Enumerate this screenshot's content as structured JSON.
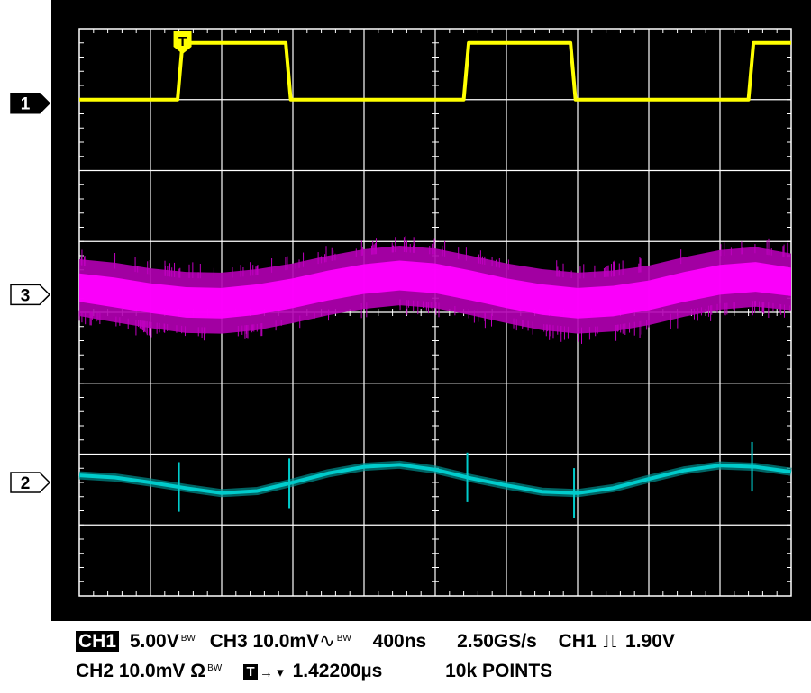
{
  "colors": {
    "ch1": "#ffff00",
    "ch2": "#00cccc",
    "ch3": "#ff00ff",
    "grid": "#ffffff",
    "screen": "#000000"
  },
  "chart_data": {
    "type": "line",
    "grid": true,
    "divisions": {
      "x": 10,
      "y": 8
    },
    "x_unit": "div",
    "y_unit": "div",
    "trigger_marker": {
      "label": "T",
      "x_div": 1.45
    },
    "series": [
      {
        "name": "1",
        "marker_y_div": 6.95,
        "x": [
          0,
          1.38,
          1.45,
          2.9,
          2.97,
          5.4,
          5.47,
          6.9,
          6.97,
          9.4,
          9.47,
          10
        ],
        "y": [
          7.0,
          7.0,
          7.8,
          7.8,
          7.0,
          7.0,
          7.8,
          7.8,
          7.0,
          7.0,
          7.8,
          7.8
        ]
      },
      {
        "name": "3",
        "marker_y_div": 4.25,
        "shape": "band",
        "x": [
          0,
          0.5,
          1,
          1.5,
          2,
          2.5,
          3,
          3.5,
          4,
          4.5,
          5,
          5.5,
          6,
          6.5,
          7,
          7.5,
          8,
          8.5,
          9,
          9.5,
          10
        ],
        "y_center": [
          4.35,
          4.28,
          4.2,
          4.14,
          4.13,
          4.18,
          4.27,
          4.38,
          4.47,
          4.52,
          4.48,
          4.38,
          4.27,
          4.18,
          4.13,
          4.16,
          4.24,
          4.36,
          4.46,
          4.5,
          4.43
        ],
        "half_width": [
          0.4,
          0.42,
          0.42,
          0.43,
          0.43,
          0.43,
          0.42,
          0.42,
          0.42,
          0.42,
          0.42,
          0.42,
          0.42,
          0.43,
          0.43,
          0.43,
          0.42,
          0.42,
          0.42,
          0.42,
          0.4
        ]
      },
      {
        "name": "2",
        "marker_y_div": 1.6,
        "x": [
          0,
          0.5,
          1,
          1.5,
          2,
          2.5,
          3,
          3.5,
          4,
          4.5,
          5,
          5.5,
          6,
          6.5,
          7,
          7.5,
          8,
          8.5,
          9,
          9.5,
          10
        ],
        "y": [
          1.7,
          1.67,
          1.6,
          1.52,
          1.45,
          1.48,
          1.6,
          1.73,
          1.82,
          1.85,
          1.78,
          1.66,
          1.56,
          1.47,
          1.45,
          1.52,
          1.65,
          1.77,
          1.84,
          1.82,
          1.75
        ],
        "spikes_x": [
          1.4,
          2.95,
          5.45,
          6.95,
          9.45
        ],
        "spike_height_div": 0.35
      }
    ]
  },
  "readout": {
    "line1": {
      "ch1_badge": "CH1",
      "ch1_scale": "5.00V",
      "ch1_bw": "BW",
      "ch3": "CH3 10.0mV",
      "ch3_coupling": "∿",
      "ch3_bw": "BW",
      "timebase": "400ns",
      "sample_rate": "2.50GS/s",
      "trigger_source": "CH1",
      "trigger_slope": "⎍",
      "trigger_level": "1.90V"
    },
    "line2": {
      "ch2": "CH2 10.0mV Ω",
      "ch2_bw": "BW",
      "trigger_box": "T",
      "trigger_arrow": "→ ▾",
      "trigger_position": "1.42200µs",
      "record_length": "10k POINTS"
    }
  }
}
